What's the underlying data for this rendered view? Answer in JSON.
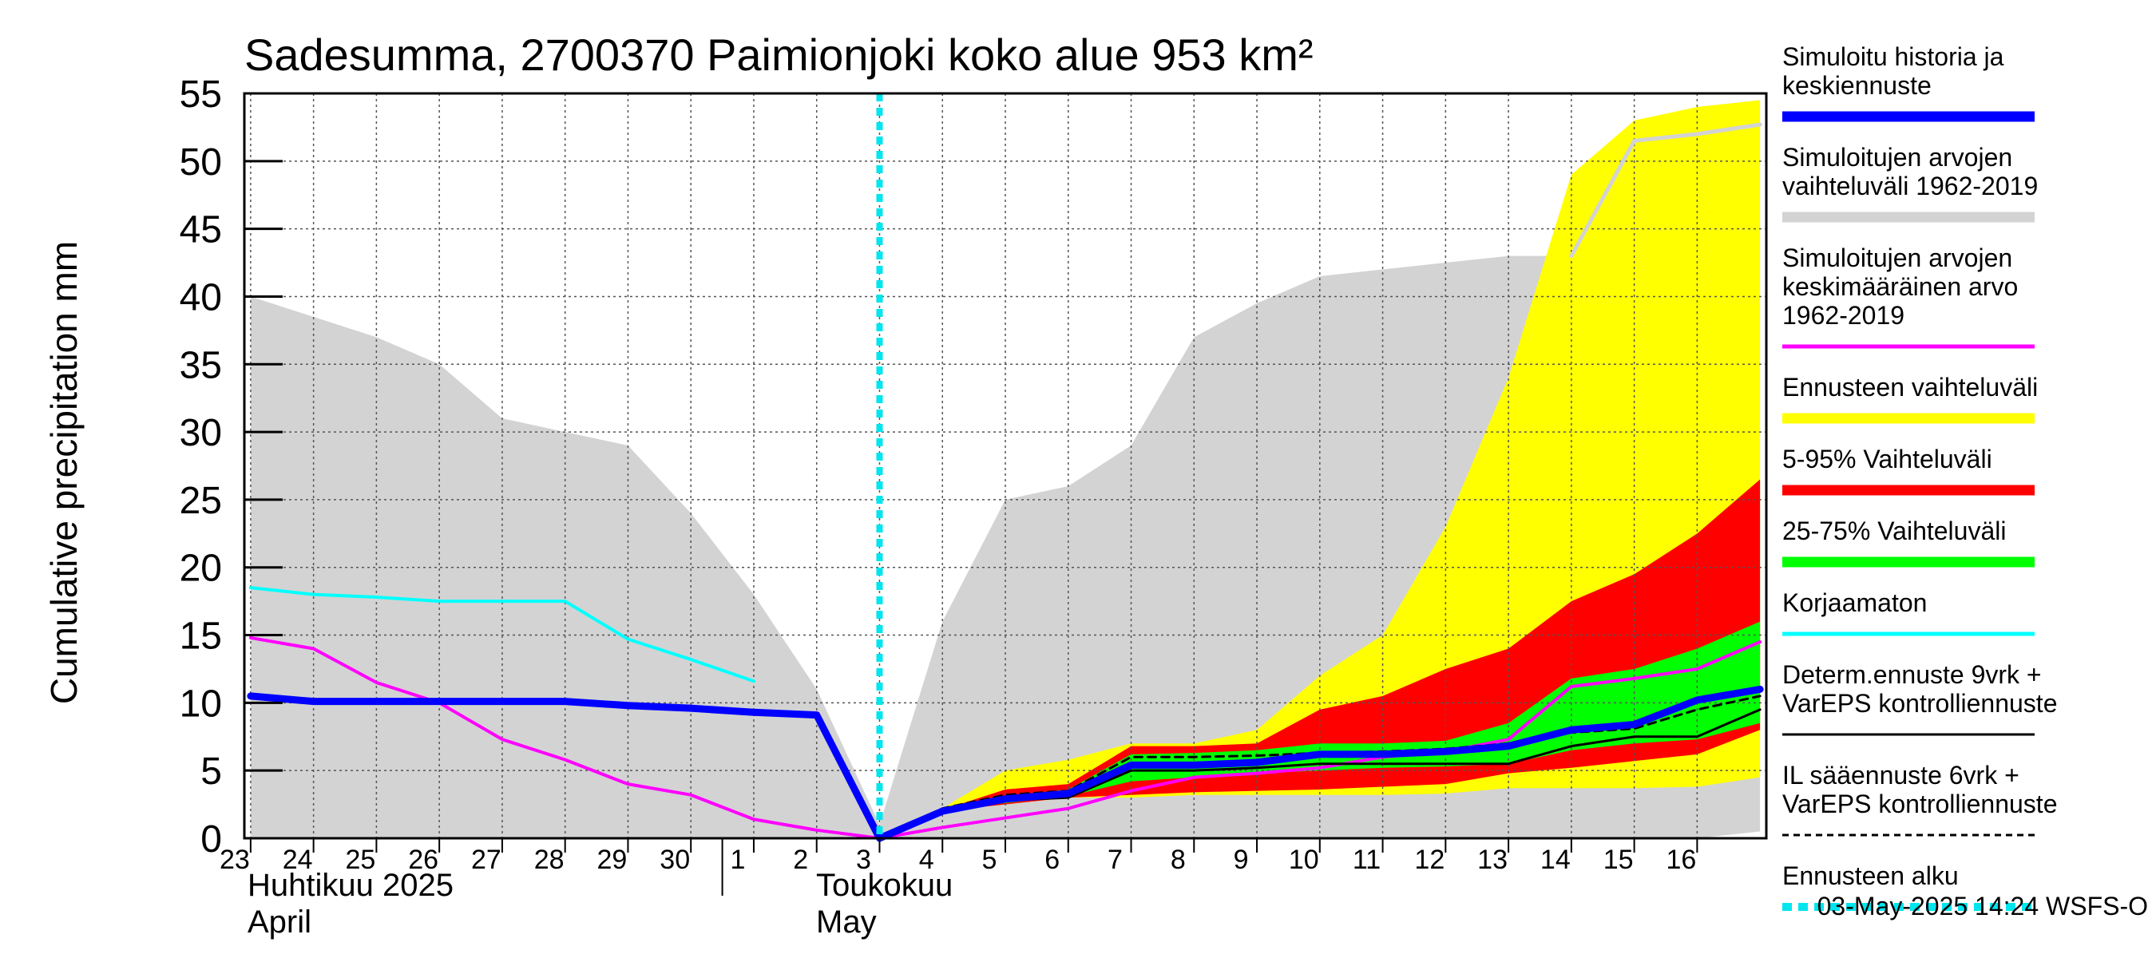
{
  "chart_data": {
    "type": "area",
    "title": "Sadesumma, 2700370 Paimionjoki koko alue 953 km²",
    "ylabel": "Cumulative precipitation   mm",
    "ylim": [
      0,
      55
    ],
    "yticks": [
      0,
      5,
      10,
      15,
      20,
      25,
      30,
      35,
      40,
      45,
      50,
      55
    ],
    "x_labels": [
      "23",
      "24",
      "25",
      "26",
      "27",
      "28",
      "29",
      "30",
      "1",
      "2",
      "3",
      "4",
      "5",
      "6",
      "7",
      "8",
      "9",
      "10",
      "11",
      "12",
      "13",
      "14",
      "15",
      "16"
    ],
    "x_label_positions": [
      23,
      24,
      25,
      26,
      27,
      28,
      29,
      30,
      31,
      32,
      33,
      34,
      35,
      36,
      37,
      38,
      39,
      40,
      41,
      42,
      43,
      44,
      45,
      46
    ],
    "xlim": [
      22.9,
      47.1
    ],
    "month_labels": [
      {
        "line1": "Huhtikuu  2025",
        "line2": "April"
      },
      {
        "line1": "Toukokuu",
        "line2": "May"
      }
    ],
    "forecast_start_x": 33,
    "grid": true,
    "series": [
      {
        "name": "Simuloitujen arvojen vaihteluväli 1962-2019",
        "kind": "band",
        "color": "#d3d3d3",
        "x": [
          23,
          24,
          25,
          26,
          27,
          28,
          29,
          30,
          31,
          32,
          33,
          34,
          35,
          36,
          37,
          38,
          39,
          40,
          41,
          42,
          43,
          44,
          45,
          46,
          47
        ],
        "lower": [
          0,
          0,
          0,
          0,
          0,
          0,
          0,
          0,
          0,
          0,
          0,
          0,
          0,
          0,
          0,
          0,
          0,
          0,
          0,
          0,
          0,
          0,
          0,
          0,
          0.5
        ],
        "upper": [
          40,
          38.5,
          37,
          35,
          31,
          30,
          29,
          24,
          18,
          11,
          1,
          16,
          25,
          26,
          29,
          37,
          39.5,
          41.5,
          42,
          42.5,
          43,
          43,
          52,
          54,
          54.5
        ]
      },
      {
        "name": "Ennusteen vaihteluväli",
        "kind": "band",
        "color": "#ffff00",
        "x": [
          33,
          34,
          35,
          36,
          37,
          38,
          39,
          40,
          41,
          42,
          43,
          44,
          45,
          46,
          47
        ],
        "lower": [
          0,
          2,
          2.5,
          3,
          3,
          3.2,
          3.2,
          3.2,
          3.2,
          3.3,
          3.7,
          3.7,
          3.7,
          3.8,
          4.5
        ],
        "upper": [
          0,
          2.2,
          5,
          5.8,
          7,
          7,
          8,
          12,
          15,
          23,
          34,
          49,
          53,
          54,
          54.5
        ]
      },
      {
        "name": "5-95% Vaihteluväli",
        "kind": "band",
        "color": "#ff0000",
        "x": [
          33,
          34,
          35,
          36,
          37,
          38,
          39,
          40,
          41,
          42,
          43,
          44,
          45,
          46,
          47
        ],
        "lower": [
          0,
          2,
          2.5,
          3,
          3.2,
          3.4,
          3.5,
          3.6,
          3.8,
          4,
          4.8,
          5.2,
          5.7,
          6.2,
          8
        ],
        "upper": [
          0,
          2.1,
          3.6,
          4,
          6.8,
          6.8,
          7,
          9.5,
          10.5,
          12.5,
          14,
          17.5,
          19.5,
          22.5,
          26.5
        ]
      },
      {
        "name": "25-75% Vaihteluväli",
        "kind": "band",
        "color": "#00ff00",
        "x": [
          33,
          34,
          35,
          36,
          37,
          38,
          39,
          40,
          41,
          42,
          43,
          44,
          45,
          46,
          47
        ],
        "lower": [
          0,
          2,
          2.6,
          3.1,
          4.2,
          4.5,
          4.8,
          5,
          5.2,
          5.3,
          5.5,
          6.5,
          7,
          7.3,
          8.5
        ],
        "upper": [
          0,
          2.1,
          3.1,
          3.6,
          6.2,
          6.3,
          6.5,
          7,
          7,
          7.2,
          8.5,
          11.8,
          12.5,
          14,
          16
        ]
      },
      {
        "name": "Simuloitujen arvojen vaihteluväli 1962-2019 (max)",
        "kind": "line",
        "color": "#d3d3d3",
        "width": 5,
        "x": [
          44,
          45,
          46,
          47
        ],
        "y": [
          43,
          51.5,
          52,
          52.7
        ]
      },
      {
        "name": "Simuloitujen arvojen keskimääräinen arvo 1962-2019",
        "kind": "line",
        "color": "#ff00ff",
        "width": 4,
        "x": [
          23,
          24,
          25,
          26,
          27,
          28,
          29,
          30,
          31,
          32,
          33,
          34,
          35,
          36,
          37,
          38,
          39,
          40,
          41,
          42,
          43,
          44,
          45,
          46,
          47
        ],
        "y": [
          14.8,
          14,
          11.5,
          10,
          7.3,
          5.8,
          4,
          3.2,
          1.4,
          0.6,
          0,
          0.8,
          1.5,
          2.2,
          3.5,
          4.5,
          4.8,
          5.2,
          6,
          6.4,
          7.3,
          11.2,
          11.8,
          12.5,
          14.5
        ]
      },
      {
        "name": "Korjaamaton",
        "kind": "line",
        "color": "#00ffff",
        "width": 4,
        "x": [
          23,
          24,
          25,
          26,
          27,
          28,
          29,
          30,
          31
        ],
        "y": [
          18.5,
          18,
          17.8,
          17.5,
          17.5,
          17.5,
          14.7,
          13.2,
          11.6
        ]
      },
      {
        "name": "Determ.ennuste 9vrk + VarEPS kontrolliennuste",
        "kind": "line",
        "color": "#000000",
        "width": 3,
        "x": [
          33,
          34,
          35,
          36,
          37,
          38,
          39,
          40,
          41,
          42,
          43,
          44,
          45,
          46,
          47
        ],
        "y": [
          0,
          2,
          2.8,
          3,
          5,
          5,
          5.2,
          5.5,
          5.5,
          5.5,
          5.5,
          6.8,
          7.5,
          7.5,
          9.5
        ]
      },
      {
        "name": "IL sääennuste 6vrk + VarEPS kontrolliennuste",
        "kind": "line",
        "color": "#000000",
        "width": 3,
        "dash": "10,7",
        "x": [
          33,
          34,
          35,
          36,
          37,
          38,
          39,
          40,
          41,
          42,
          43,
          44,
          45,
          46,
          47
        ],
        "y": [
          0,
          2.2,
          3.2,
          3.5,
          6,
          6,
          6.1,
          6.3,
          6.4,
          6.6,
          7,
          7.8,
          8.1,
          9.5,
          10.5
        ]
      },
      {
        "name": "Simuloitu historia ja keskiennuste",
        "kind": "line",
        "color": "#0000ff",
        "width": 9,
        "x": [
          23,
          24,
          25,
          26,
          27,
          28,
          29,
          30,
          31,
          32,
          33,
          34,
          35,
          36,
          37,
          38,
          39,
          40,
          41,
          42,
          43,
          44,
          45,
          46,
          47
        ],
        "y": [
          10.5,
          10.1,
          10.1,
          10.1,
          10.1,
          10.1,
          9.8,
          9.6,
          9.3,
          9.1,
          0,
          2,
          2.9,
          3.3,
          5.4,
          5.4,
          5.6,
          6.2,
          6.2,
          6.4,
          6.8,
          8,
          8.4,
          10.2,
          11
        ]
      }
    ],
    "legend": [
      {
        "text": [
          "Simuloitu historia ja",
          "keskiennuste"
        ],
        "color": "#0000ff",
        "style": "thick"
      },
      {
        "text": [
          "Simuloitujen arvojen",
          "vaihteluväli 1962-2019"
        ],
        "color": "#d3d3d3",
        "style": "thick"
      },
      {
        "text": [
          "Simuloitujen arvojen",
          "keskimääräinen arvo",
          "   1962-2019"
        ],
        "color": "#ff00ff",
        "style": "medium"
      },
      {
        "text": [
          "Ennusteen vaihteluväli"
        ],
        "color": "#ffff00",
        "style": "thick"
      },
      {
        "text": [
          "5-95% Vaihteluväli"
        ],
        "color": "#ff0000",
        "style": "thick"
      },
      {
        "text": [
          "25-75% Vaihteluväli"
        ],
        "color": "#00ff00",
        "style": "thick"
      },
      {
        "text": [
          "Korjaamaton"
        ],
        "color": "#00ffff",
        "style": "medium"
      },
      {
        "text": [
          "Determ.ennuste 9vrk +",
          "VarEPS kontrolliennuste"
        ],
        "color": "#000000",
        "style": "thin"
      },
      {
        "text": [
          "IL sääennuste 6vrk  +",
          "  VarEPS kontrolliennuste"
        ],
        "color": "#000000",
        "style": "dashed"
      },
      {
        "text": [
          "Ennusteen alku"
        ],
        "color": "#00e5ee",
        "style": "dotted"
      }
    ],
    "footer": "03-May-2025 14:24 WSFS-O"
  }
}
